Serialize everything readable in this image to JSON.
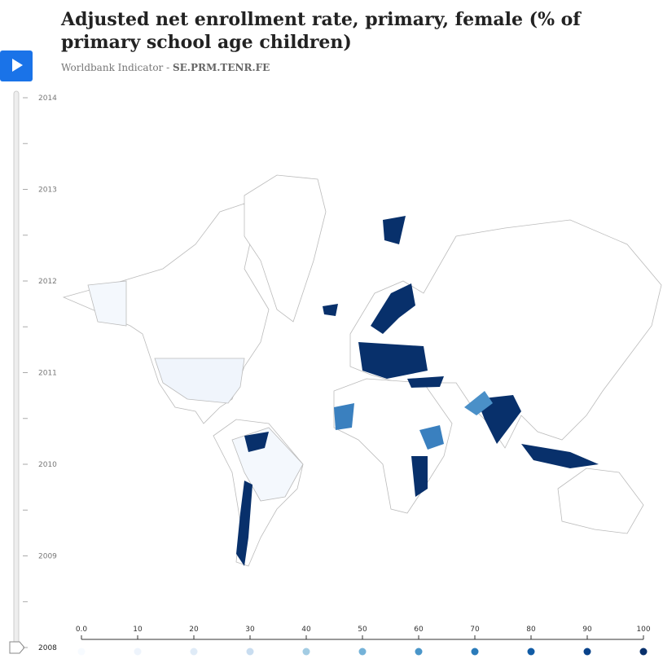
{
  "header": {
    "title": "Adjusted net enrollment rate, primary, female (% of primary school age children)",
    "subtitle_prefix": "Worldbank Indicator - ",
    "subtitle_code": "SE.PRM.TENR.FE"
  },
  "timeline": {
    "range": [
      2008,
      2014
    ],
    "years": [
      2014,
      2013,
      2012,
      2011,
      2010,
      2009,
      2008
    ]
  },
  "legend": {
    "range": [
      0,
      100
    ],
    "ticks": [
      {
        "value": 0,
        "label": "0.0"
      },
      10,
      20,
      30,
      40,
      50,
      60,
      70,
      80,
      90,
      100
    ],
    "colors": [
      "#f7fbff",
      "#eef4fc",
      "#dfebf7",
      "#c9ddf0",
      "#a3cce3",
      "#74b2d8",
      "#4a96c9",
      "#2a7bba",
      "#115ca5",
      "#08428a",
      "#08306b"
    ]
  }
}
